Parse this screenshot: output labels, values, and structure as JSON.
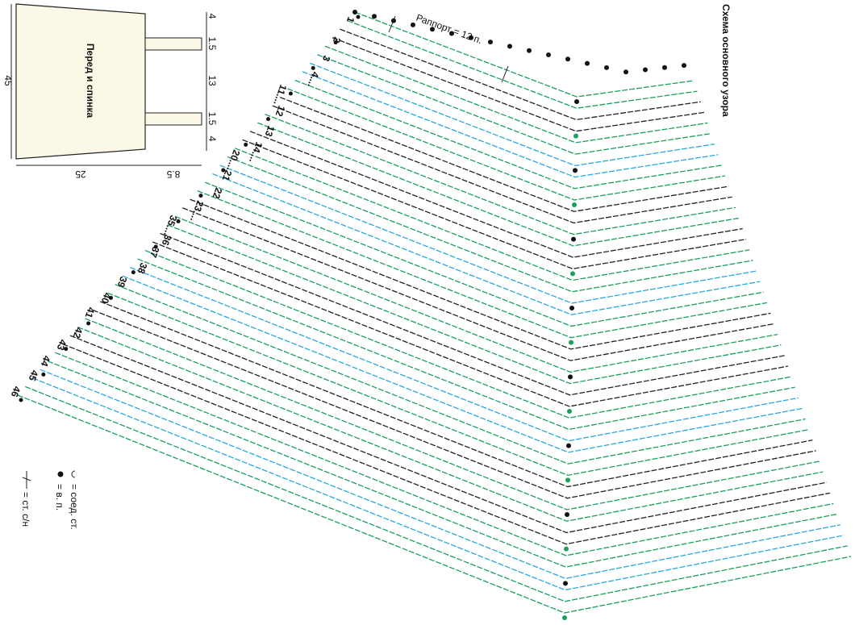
{
  "schematic": {
    "label": "Перед и спинка",
    "height": "45",
    "bottom_width": "25",
    "shoulder_width": "8.5",
    "side_dims": [
      "4",
      "1.5",
      "13",
      "1.5",
      "4"
    ]
  },
  "pattern": {
    "title": "Схема основного узора",
    "repeat": "Раппорт = 12 п.",
    "row_labels": [
      "1",
      "2",
      "3",
      "4....",
      "11....",
      "12",
      "13",
      "14....",
      "20....",
      "21",
      "22",
      "23....",
      "35....",
      "36",
      "37",
      "38",
      "39",
      "40",
      "41",
      "42",
      "43",
      "44",
      "45",
      "46"
    ]
  },
  "legend": [
    "= соед. ст.",
    "= в. п.",
    "= ст. с/н"
  ]
}
